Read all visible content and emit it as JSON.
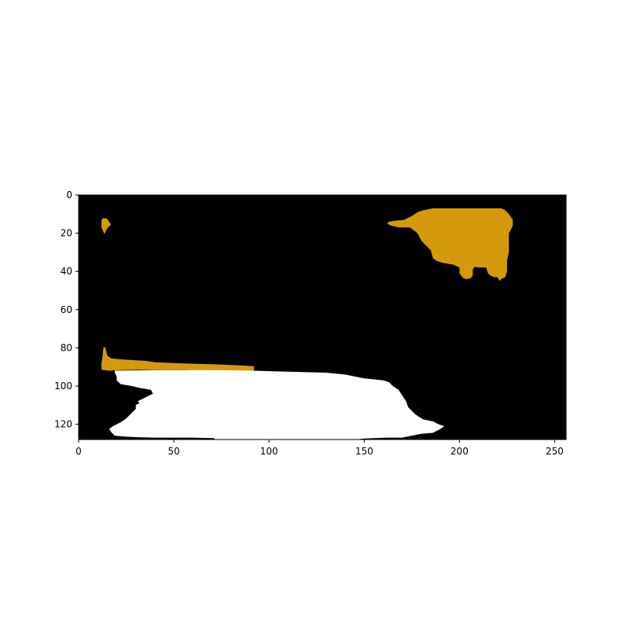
{
  "chart_data": {
    "type": "image",
    "image_size": [
      256,
      128
    ],
    "xlim": [
      0,
      256
    ],
    "ylim": [
      128,
      0
    ],
    "y_inverted": true,
    "xticks": [
      0,
      50,
      100,
      150,
      200,
      250
    ],
    "xtick_labels": [
      "0",
      "50",
      "100",
      "150",
      "200",
      "250"
    ],
    "yticks": [
      0,
      20,
      40,
      60,
      80,
      100,
      120
    ],
    "ytick_labels": [
      "0",
      "20",
      "40",
      "60",
      "80",
      "100",
      "120"
    ],
    "title": "",
    "xlabel": "",
    "ylabel": "",
    "grid": false,
    "background_color": "#000000",
    "regions": [
      {
        "id": "gold-dot",
        "color": "#D49A0C",
        "points": [
          [
            12,
            13
          ],
          [
            13,
            12
          ],
          [
            15,
            12.5
          ],
          [
            17,
            15.5
          ],
          [
            15,
            17.5
          ],
          [
            13.5,
            20.5
          ],
          [
            12,
            17
          ]
        ]
      },
      {
        "id": "gold-blob-top-right",
        "color": "#D49A0C",
        "points": [
          [
            186,
            7
          ],
          [
            196,
            7
          ],
          [
            209,
            7
          ],
          [
            222,
            7
          ],
          [
            224,
            8
          ],
          [
            226,
            10
          ],
          [
            228,
            13
          ],
          [
            228,
            16
          ],
          [
            227,
            18
          ],
          [
            226,
            20
          ],
          [
            226,
            30
          ],
          [
            225,
            34
          ],
          [
            225,
            40
          ],
          [
            224,
            43
          ],
          [
            222,
            44
          ],
          [
            221,
            45
          ],
          [
            220,
            43
          ],
          [
            218,
            43
          ],
          [
            216,
            42
          ],
          [
            215,
            41
          ],
          [
            214,
            38
          ],
          [
            210,
            38
          ],
          [
            208,
            37.5
          ],
          [
            207,
            39
          ],
          [
            207,
            42
          ],
          [
            206,
            43.5
          ],
          [
            204,
            44
          ],
          [
            202,
            43.5
          ],
          [
            200,
            41
          ],
          [
            200,
            38
          ],
          [
            197,
            36.5
          ],
          [
            191,
            35.5
          ],
          [
            188,
            34.5
          ],
          [
            186,
            33
          ],
          [
            185,
            29
          ],
          [
            182,
            26
          ],
          [
            180,
            24
          ],
          [
            178,
            20
          ],
          [
            174,
            17
          ],
          [
            168,
            17
          ],
          [
            164,
            16
          ],
          [
            162,
            15
          ],
          [
            163,
            14
          ],
          [
            166,
            13.5
          ],
          [
            171,
            13
          ],
          [
            175,
            11
          ],
          [
            178,
            9
          ],
          [
            181,
            8
          ]
        ]
      },
      {
        "id": "gold-strip-bottom-left",
        "color": "#D49A0C",
        "points": [
          [
            13,
            80
          ],
          [
            14,
            79.5
          ],
          [
            15,
            84
          ],
          [
            17,
            85.5
          ],
          [
            22,
            86
          ],
          [
            30,
            86.5
          ],
          [
            35,
            86.8
          ],
          [
            40,
            87.6
          ],
          [
            55,
            88.2
          ],
          [
            70,
            88.6
          ],
          [
            85,
            89.2
          ],
          [
            92,
            89.6
          ],
          [
            92,
            92.2
          ],
          [
            80,
            92
          ],
          [
            70,
            91.8
          ],
          [
            55,
            91.5
          ],
          [
            40,
            91.5
          ],
          [
            30,
            91.5
          ],
          [
            20,
            91.8
          ],
          [
            16,
            92
          ],
          [
            12,
            91.5
          ],
          [
            12,
            88
          ],
          [
            12.5,
            85
          ]
        ]
      },
      {
        "id": "white-region-bottom",
        "color": "#FFFFFF",
        "points": [
          [
            19,
            92
          ],
          [
            40,
            91.6
          ],
          [
            60,
            91.6
          ],
          [
            80,
            91.8
          ],
          [
            92,
            92
          ],
          [
            110,
            92.5
          ],
          [
            130,
            93
          ],
          [
            140,
            94
          ],
          [
            150,
            96
          ],
          [
            160,
            97
          ],
          [
            163,
            98
          ],
          [
            165,
            100
          ],
          [
            168,
            102
          ],
          [
            170,
            105
          ],
          [
            172,
            108
          ],
          [
            173,
            111
          ],
          [
            175,
            113
          ],
          [
            177,
            115
          ],
          [
            181,
            117.5
          ],
          [
            186,
            118.5
          ],
          [
            189,
            120
          ],
          [
            192,
            121
          ],
          [
            190,
            122.5
          ],
          [
            186,
            124.5
          ],
          [
            180,
            125
          ],
          [
            175,
            126
          ],
          [
            170,
            127
          ],
          [
            162,
            127
          ],
          [
            150,
            127.5
          ],
          [
            145,
            128
          ],
          [
            72,
            128
          ],
          [
            71,
            127.3
          ],
          [
            60,
            127
          ],
          [
            50,
            127
          ],
          [
            40,
            127
          ],
          [
            32,
            126.8
          ],
          [
            25,
            126.5
          ],
          [
            19,
            126
          ],
          [
            17,
            124
          ],
          [
            16,
            122.5
          ],
          [
            18,
            121
          ],
          [
            20,
            120
          ],
          [
            22,
            119
          ],
          [
            25,
            117
          ],
          [
            28,
            114
          ],
          [
            30,
            112
          ],
          [
            30,
            110
          ],
          [
            32,
            109
          ],
          [
            31,
            108
          ],
          [
            35,
            106
          ],
          [
            39,
            104
          ],
          [
            38,
            102
          ],
          [
            32,
            101
          ],
          [
            28,
            100
          ],
          [
            22,
            99
          ],
          [
            20,
            97
          ],
          [
            20,
            95
          ],
          [
            19,
            93
          ]
        ]
      }
    ]
  }
}
